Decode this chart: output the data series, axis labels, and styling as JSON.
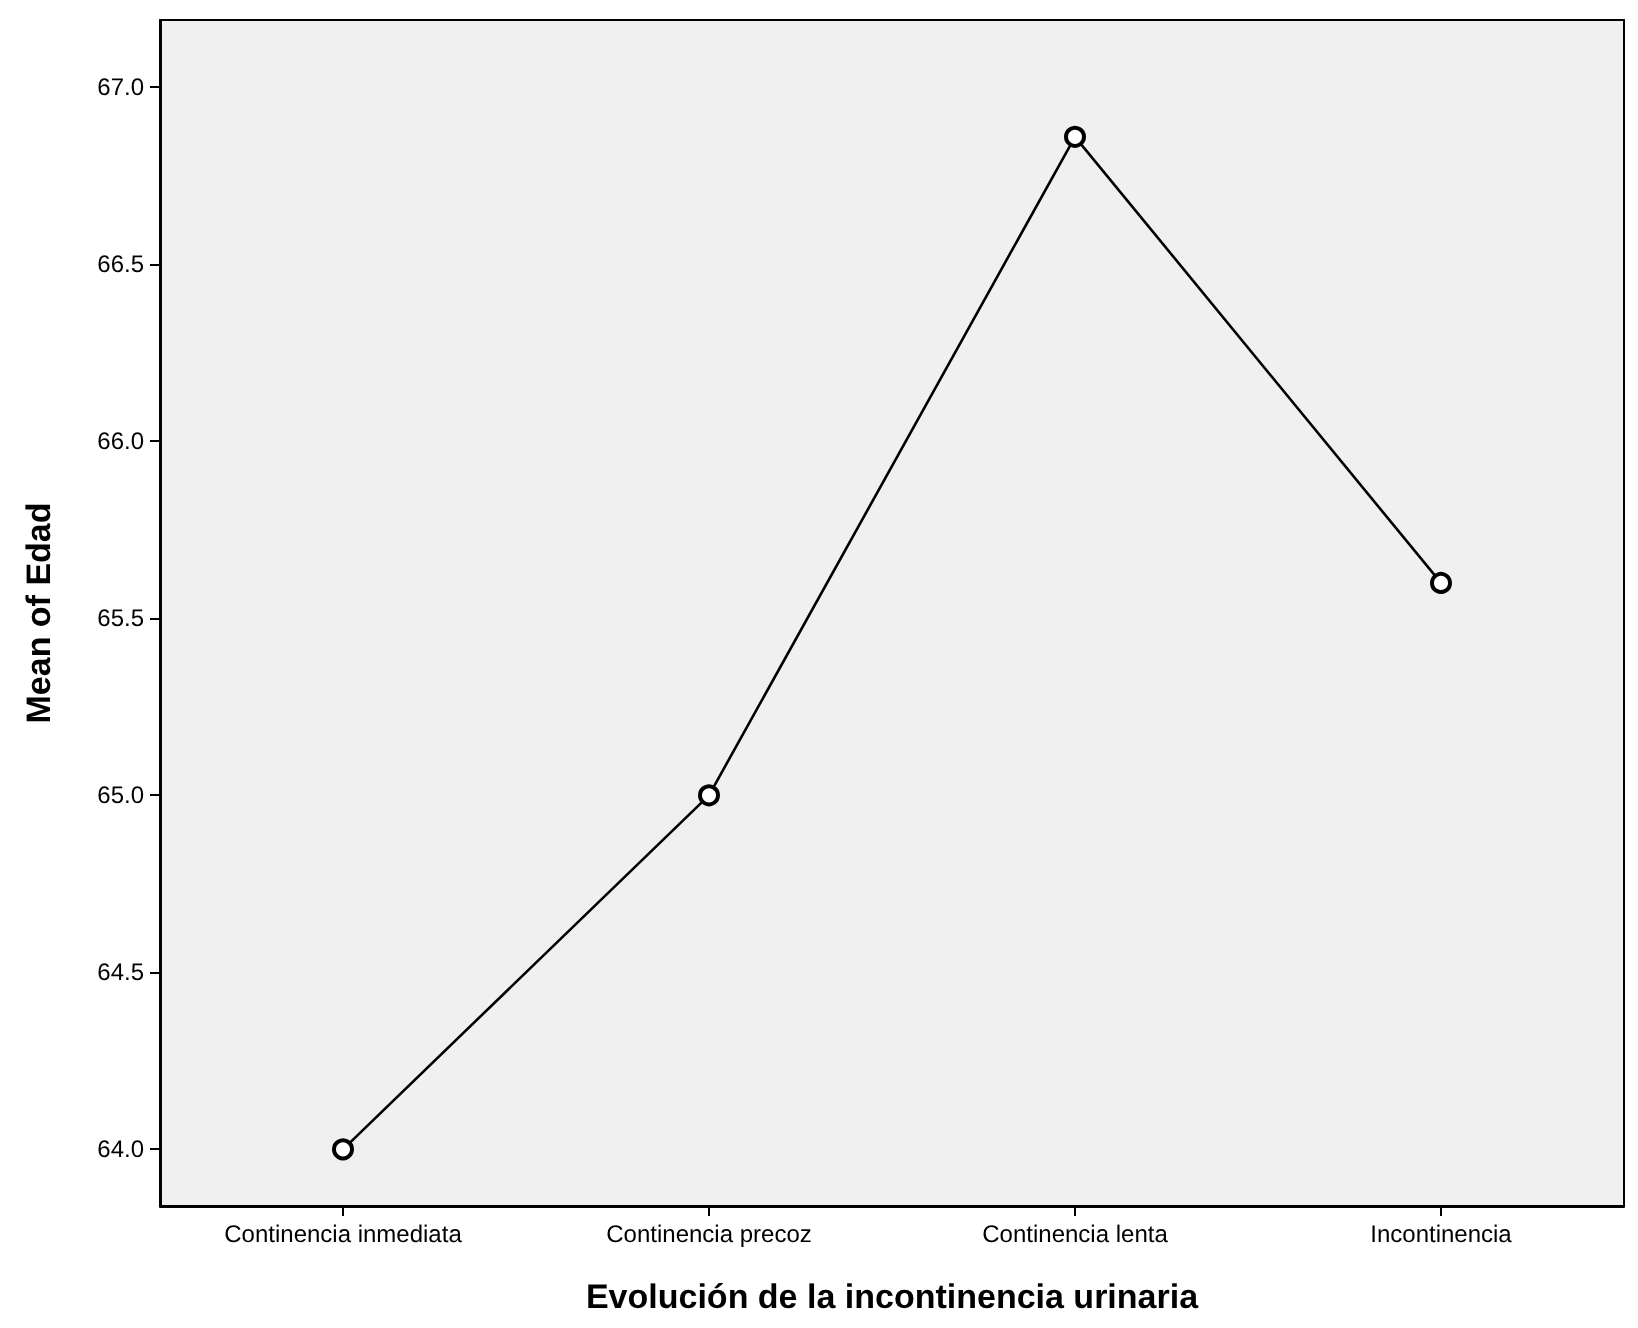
{
  "chart_data": {
    "type": "line",
    "xlabel": "Evolución de la incontinencia urinaria",
    "ylabel": "Mean of Edad",
    "categories": [
      "Continencia inmediata",
      "Continencia precoz",
      "Continencia lenta",
      "Incontinencia"
    ],
    "series": [
      {
        "color": "#000000",
        "values": [
          64.0,
          65.0,
          66.86,
          65.6
        ]
      }
    ],
    "ylim": [
      63.84,
      67.19
    ],
    "yticks": [
      {
        "value": 64,
        "label": "64.0"
      },
      {
        "value": 64.5,
        "label": "64.5"
      },
      {
        "value": 65,
        "label": "65.0"
      },
      {
        "value": 65.5,
        "label": "65.5"
      },
      {
        "value": 66,
        "label": "66.0"
      },
      {
        "value": 66.5,
        "label": "66.5"
      },
      {
        "value": 67,
        "label": "67.0"
      }
    ],
    "marker": "circle",
    "line_style": "solid"
  }
}
